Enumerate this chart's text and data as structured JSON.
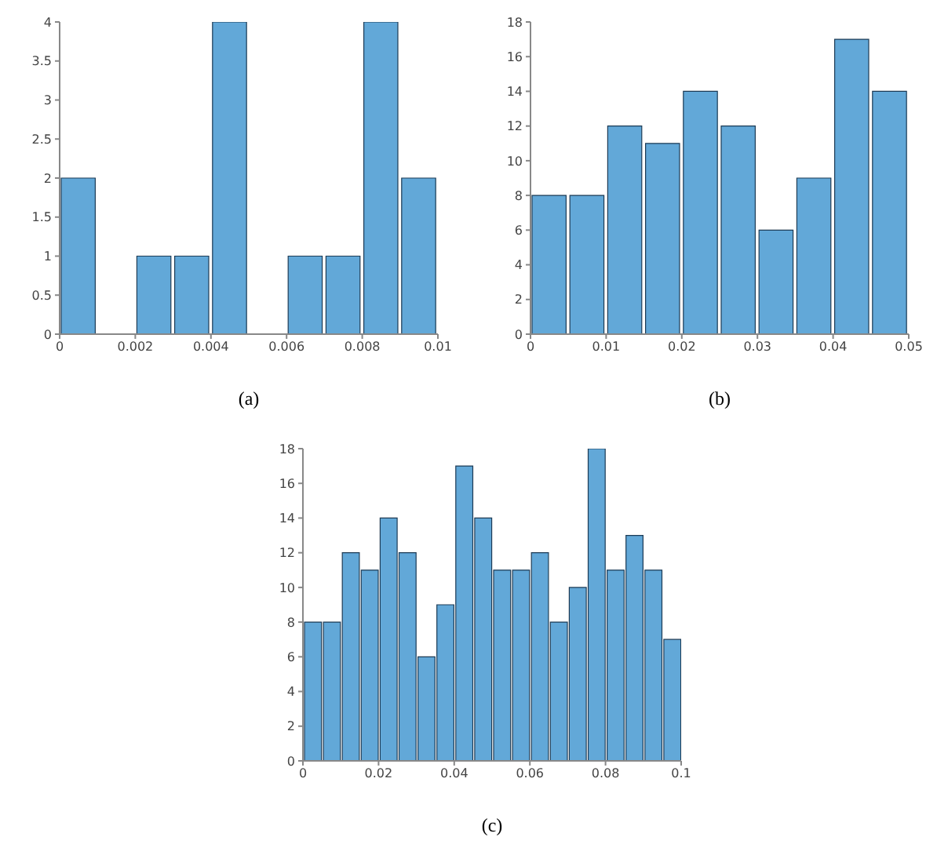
{
  "chart_data": [
    {
      "type": "histogram",
      "bins": [
        0,
        0.001,
        0.002,
        0.003,
        0.004,
        0.005,
        0.006,
        0.007,
        0.008,
        0.009,
        0.01
      ],
      "values": [
        2,
        0,
        1,
        1,
        4,
        0,
        1,
        1,
        4,
        2
      ],
      "color": "#62a8d8",
      "xlim": [
        0,
        0.01
      ],
      "xticks": [
        0,
        0.002,
        0.004,
        0.006,
        0.008,
        0.01
      ],
      "ylim": [
        0,
        4
      ],
      "yticks": [
        0,
        0.5,
        1,
        1.5,
        2,
        2.5,
        3,
        3.5,
        4
      ],
      "grid": false,
      "annotations": [
        "(a)"
      ]
    },
    {
      "type": "histogram",
      "bins": [
        0,
        0.005,
        0.01,
        0.015,
        0.02,
        0.025,
        0.03,
        0.035,
        0.04,
        0.045,
        0.05
      ],
      "values": [
        8,
        8,
        12,
        11,
        14,
        12,
        6,
        9,
        17,
        14
      ],
      "color": "#62a8d8",
      "xlim": [
        0,
        0.05
      ],
      "xticks": [
        0,
        0.01,
        0.02,
        0.03,
        0.04,
        0.05
      ],
      "ylim": [
        0,
        18
      ],
      "yticks": [
        0,
        2,
        4,
        6,
        8,
        10,
        12,
        14,
        16,
        18
      ],
      "grid": false,
      "annotations": [
        "(b)"
      ]
    },
    {
      "type": "histogram",
      "bins": [
        0,
        0.005,
        0.01,
        0.015,
        0.02,
        0.025,
        0.03,
        0.035,
        0.04,
        0.045,
        0.05,
        0.055,
        0.06,
        0.065,
        0.07,
        0.075,
        0.08,
        0.085,
        0.09,
        0.095,
        0.1
      ],
      "values": [
        8,
        8,
        12,
        11,
        14,
        12,
        6,
        9,
        17,
        14,
        11,
        11,
        12,
        8,
        10,
        18,
        11,
        13,
        11,
        7
      ],
      "color": "#62a8d8",
      "xlim": [
        0,
        0.1
      ],
      "xticks": [
        0,
        0.02,
        0.04,
        0.06,
        0.08,
        0.1
      ],
      "ylim": [
        0,
        18
      ],
      "yticks": [
        0,
        2,
        4,
        6,
        8,
        10,
        12,
        14,
        16,
        18
      ],
      "grid": false,
      "annotations": [
        "(c)"
      ]
    }
  ]
}
